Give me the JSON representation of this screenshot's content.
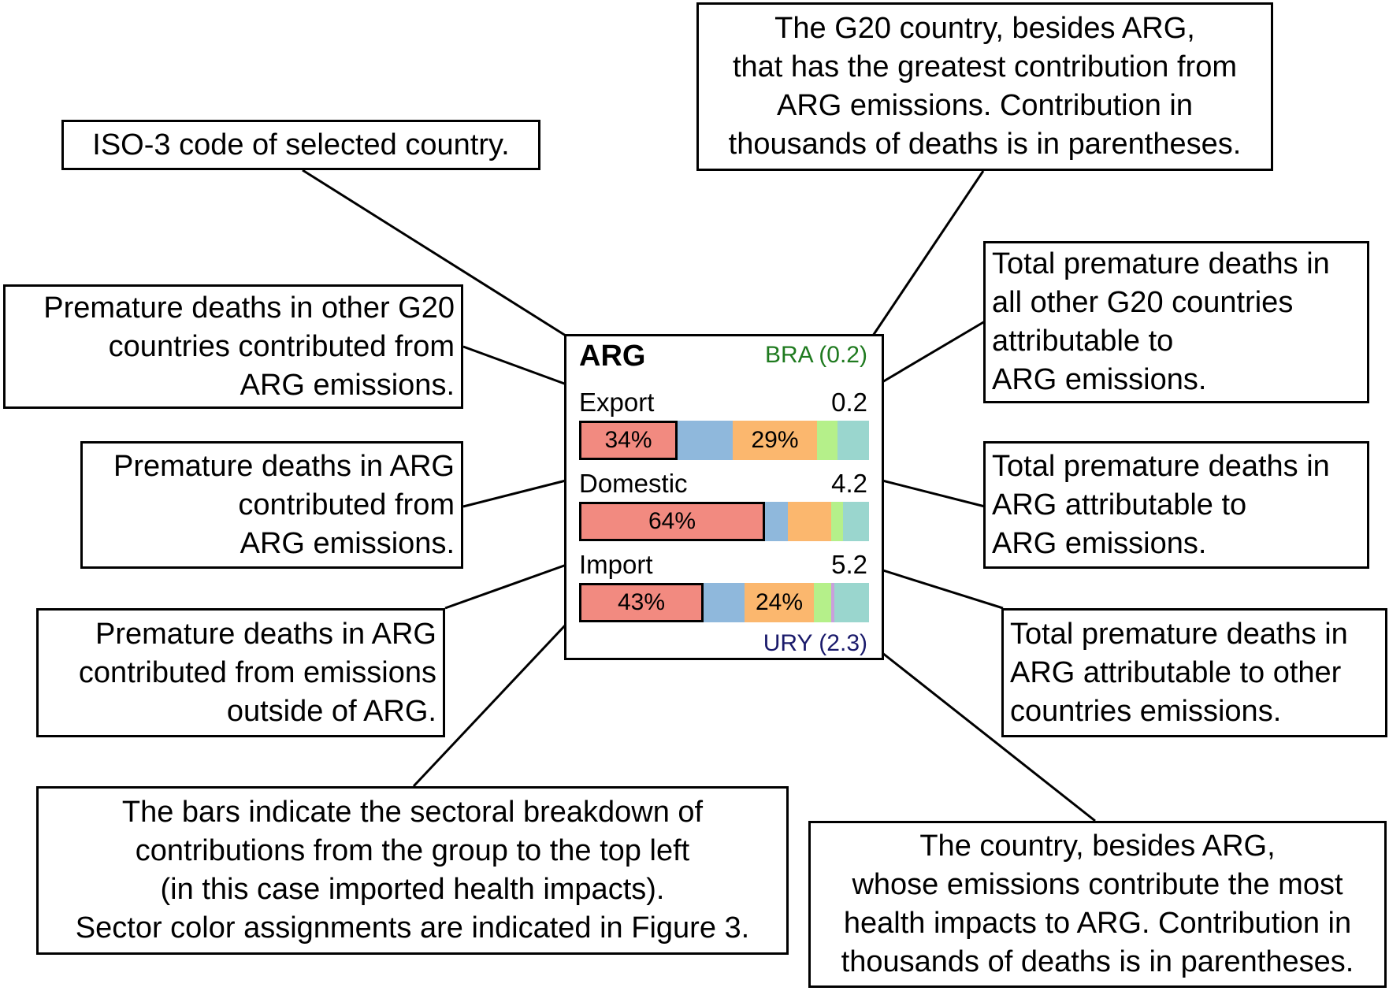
{
  "card": {
    "country": "ARG",
    "top_partner": "BRA (0.2)",
    "bottom_partner": "URY (2.3)",
    "colors": {
      "sector_1": "#f28a80",
      "sector_2": "#8fb8dc",
      "sector_3": "#fbb76e",
      "sector_4": "#b5f08a",
      "sector_5": "#9ad6ce",
      "sector_6": "#c9a0dc",
      "top_partner_text": "#1f7a1f",
      "bottom_partner_text": "#1a1a6b"
    },
    "rows": [
      {
        "label": "Export",
        "value": "0.2",
        "segments": [
          {
            "share": 0.34,
            "color": "#f28a80",
            "label": "34%",
            "outlined": true
          },
          {
            "share": 0.19,
            "color": "#8fb8dc",
            "label": ""
          },
          {
            "share": 0.29,
            "color": "#fbb76e",
            "label": "29%"
          },
          {
            "share": 0.07,
            "color": "#b5f08a",
            "label": ""
          },
          {
            "share": 0.11,
            "color": "#9ad6ce",
            "label": ""
          }
        ]
      },
      {
        "label": "Domestic",
        "value": "4.2",
        "segments": [
          {
            "share": 0.64,
            "color": "#f28a80",
            "label": "64%",
            "outlined": true
          },
          {
            "share": 0.08,
            "color": "#8fb8dc",
            "label": ""
          },
          {
            "share": 0.15,
            "color": "#fbb76e",
            "label": ""
          },
          {
            "share": 0.04,
            "color": "#b5f08a",
            "label": ""
          },
          {
            "share": 0.09,
            "color": "#9ad6ce",
            "label": ""
          }
        ]
      },
      {
        "label": "Import",
        "value": "5.2",
        "segments": [
          {
            "share": 0.43,
            "color": "#f28a80",
            "label": "43%",
            "outlined": true
          },
          {
            "share": 0.14,
            "color": "#8fb8dc",
            "label": ""
          },
          {
            "share": 0.24,
            "color": "#fbb76e",
            "label": "24%"
          },
          {
            "share": 0.06,
            "color": "#b5f08a",
            "label": ""
          },
          {
            "share": 0.01,
            "color": "#c9a0dc",
            "label": ""
          },
          {
            "share": 0.12,
            "color": "#9ad6ce",
            "label": ""
          }
        ]
      }
    ]
  },
  "callouts": {
    "iso_code": [
      "ISO-3 code of selected country."
    ],
    "top_partner": [
      "The G20 country, besides ARG,",
      "that has the greatest contribution from",
      "ARG emissions. Contribution in",
      "thousands of deaths is in parentheses."
    ],
    "export_left": [
      "Premature deaths in other G20",
      "countries contributed from",
      "ARG emissions."
    ],
    "export_right": [
      "Total premature deaths in",
      "all other G20 countries",
      "attributable to",
      "ARG emissions."
    ],
    "domestic_left": [
      "Premature deaths in ARG",
      "contributed from",
      "ARG emissions."
    ],
    "domestic_right": [
      "Total premature deaths in",
      "ARG attributable to",
      "ARG emissions."
    ],
    "import_left": [
      "Premature deaths in ARG",
      "contributed from emissions",
      "outside of ARG."
    ],
    "import_right": [
      "Total premature deaths in",
      "ARG attributable to other",
      "countries emissions."
    ],
    "bars": [
      "The bars indicate the sectoral breakdown of",
      "contributions from the group to the top left",
      "(in this case imported health impacts).",
      "Sector color assignments are indicated in Figure 3."
    ],
    "bottom_partner": [
      "The country, besides ARG,",
      "whose emissions contribute the most",
      "health impacts to ARG. Contribution in",
      "thousands of deaths is in parentheses."
    ]
  }
}
